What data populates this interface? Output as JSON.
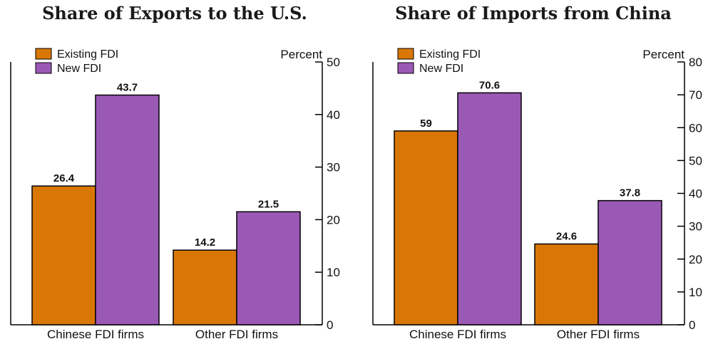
{
  "colors": {
    "existing": "#D97706",
    "new": "#9B59B6"
  },
  "chart_data": [
    {
      "type": "bar",
      "title": "Share of Exports to the U.S.",
      "ylabel": "Percent",
      "ylim": [
        0,
        50
      ],
      "yticks": [
        0,
        10,
        20,
        30,
        40,
        50
      ],
      "categories": [
        "Chinese FDI firms",
        "Other FDI firms"
      ],
      "series": [
        {
          "name": "Existing FDI",
          "values": [
            26.4,
            14.2
          ],
          "labels": [
            "26.4",
            "14.2"
          ]
        },
        {
          "name": "New FDI",
          "values": [
            43.7,
            21.5
          ],
          "labels": [
            "43.7",
            "21.5"
          ]
        }
      ],
      "legend": "top-left",
      "grid": false
    },
    {
      "type": "bar",
      "title": "Share of Imports from China",
      "ylabel": "Percent",
      "ylim": [
        0,
        80
      ],
      "yticks": [
        0,
        10,
        20,
        30,
        40,
        50,
        60,
        70,
        80
      ],
      "categories": [
        "Chinese FDI firms",
        "Other FDI firms"
      ],
      "series": [
        {
          "name": "Existing FDI",
          "values": [
            59,
            24.6
          ],
          "labels": [
            "59",
            "24.6"
          ]
        },
        {
          "name": "New FDI",
          "values": [
            70.6,
            37.8
          ],
          "labels": [
            "70.6",
            "37.8"
          ]
        }
      ],
      "legend": "top-left",
      "grid": false
    }
  ]
}
